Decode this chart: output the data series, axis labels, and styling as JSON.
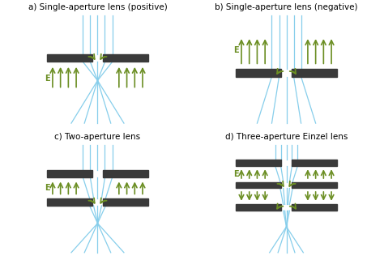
{
  "title_a": "a) Single-aperture lens (positive)",
  "title_b": "b) Single-aperture lens (negative)",
  "title_c": "c) Two-aperture lens",
  "title_d": "d) Three-aperture Einzel lens",
  "beam_color": "#87CEEB",
  "field_color": "#6B8E23",
  "plate_color": "#3a3a3a",
  "bg_color": "#ffffff",
  "title_fontsize": 7.5,
  "label_fontsize": 7
}
